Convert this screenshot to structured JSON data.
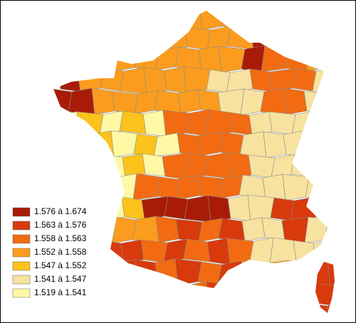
{
  "legend": {
    "items": [
      {
        "label": "1.576 à 1.674",
        "color": "#a81c07"
      },
      {
        "label": "1.563 à 1.576",
        "color": "#d83a0c"
      },
      {
        "label": "1.558 à 1.563",
        "color": "#f26b12"
      },
      {
        "label": "1.552 à 1.558",
        "color": "#fb9c1e"
      },
      {
        "label": "1.547 à 1.552",
        "color": "#fcc31c"
      },
      {
        "label": "1.541 à 1.547",
        "color": "#f7e2a0"
      },
      {
        "label": "1.519 à 1.541",
        "color": "#fff9a6"
      }
    ]
  }
}
